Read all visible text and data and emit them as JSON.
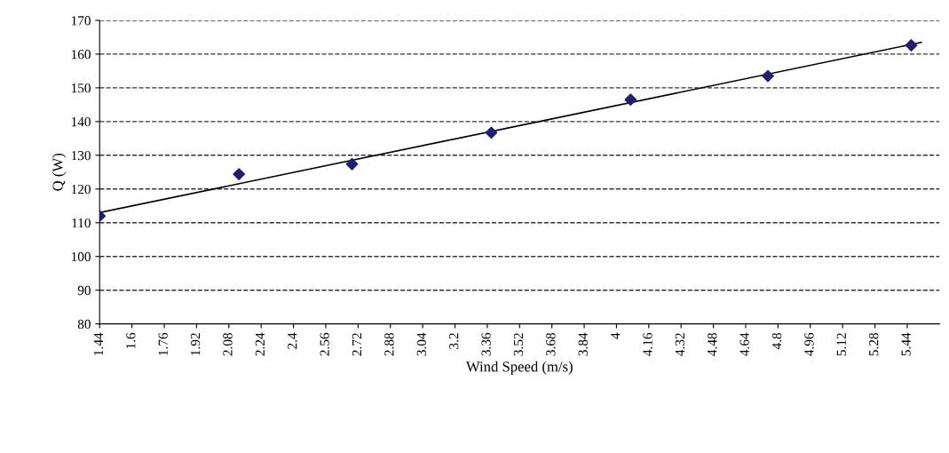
{
  "chart_data": {
    "type": "scatter",
    "xlabel": "Wind Speed (m/s)",
    "ylabel": "Q (W)",
    "xlim": [
      1.44,
      5.6
    ],
    "xticks": [
      1.44,
      1.6,
      1.76,
      1.92,
      2.08,
      2.24,
      2.4,
      2.56,
      2.72,
      2.88,
      3.04,
      3.2,
      3.36,
      3.52,
      3.68,
      3.84,
      4,
      4.16,
      4.32,
      4.48,
      4.64,
      4.8,
      4.96,
      5.12,
      5.28,
      5.44
    ],
    "ylim": [
      80,
      170
    ],
    "yticks": [
      80,
      90,
      100,
      110,
      120,
      130,
      140,
      150,
      160,
      170
    ],
    "grid": "y",
    "legend": false,
    "series": [
      {
        "color": "#1f1f6e",
        "marker": "diamond",
        "x": [
          1.44,
          2.13,
          2.69,
          3.38,
          4.07,
          4.75,
          5.46
        ],
        "values": [
          112,
          124.4,
          127.4,
          136.7,
          146.5,
          153.5,
          162.6
        ]
      },
      {
        "type": "line",
        "color": "#000000",
        "marker": "none",
        "line_style": "solid",
        "x": [
          1.44,
          5.51
        ],
        "values": [
          113,
          163.5
        ]
      }
    ]
  }
}
